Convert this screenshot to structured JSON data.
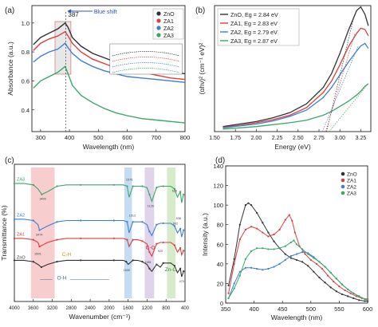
{
  "figure": {
    "colors": {
      "ZnO": "#333333",
      "ZA1": "#d94040",
      "ZA2": "#3f7fd0",
      "ZA3": "#3aa86a"
    }
  },
  "chart_data": [
    {
      "id": "a",
      "type": "line",
      "panel_label": "(a)",
      "xlabel": "Wavelength (nm)",
      "ylabel": "Absorbance (a.u.)",
      "xlim": [
        270,
        800
      ],
      "ylim": [
        0.25,
        1.12
      ],
      "xticks": [
        "300",
        "400",
        "500",
        "600",
        "700",
        "800"
      ],
      "yticks": [
        "0.4",
        "0.6",
        "0.8",
        "1.0"
      ],
      "legend": "top-right",
      "annotations": {
        "peak": "387",
        "shift": "Blue shift"
      },
      "series": [
        {
          "name": "ZnO",
          "x": [
            275,
            300,
            330,
            360,
            385,
            395,
            410,
            440,
            480,
            520,
            560,
            600,
            650,
            700,
            750,
            800
          ],
          "y": [
            0.85,
            0.9,
            0.93,
            0.96,
            1.0,
            0.97,
            0.9,
            0.84,
            0.79,
            0.76,
            0.73,
            0.71,
            0.7,
            0.68,
            0.66,
            0.65
          ]
        },
        {
          "name": "ZA1",
          "x": [
            275,
            300,
            330,
            360,
            385,
            395,
            410,
            440,
            480,
            520,
            560,
            600,
            650,
            700,
            750,
            800
          ],
          "y": [
            0.81,
            0.86,
            0.89,
            0.91,
            0.94,
            0.91,
            0.86,
            0.8,
            0.75,
            0.72,
            0.69,
            0.67,
            0.66,
            0.64,
            0.62,
            0.61
          ]
        },
        {
          "name": "ZA2",
          "x": [
            275,
            300,
            330,
            360,
            385,
            395,
            410,
            440,
            480,
            520,
            560,
            600,
            650,
            700,
            750,
            800
          ],
          "y": [
            0.73,
            0.77,
            0.8,
            0.82,
            0.86,
            0.83,
            0.79,
            0.74,
            0.7,
            0.67,
            0.65,
            0.63,
            0.62,
            0.61,
            0.6,
            0.59
          ]
        },
        {
          "name": "ZA3",
          "x": [
            275,
            300,
            330,
            360,
            385,
            395,
            410,
            440,
            480,
            520,
            560,
            600,
            650,
            700,
            750,
            800
          ],
          "y": [
            0.55,
            0.6,
            0.63,
            0.66,
            0.7,
            0.65,
            0.57,
            0.5,
            0.45,
            0.41,
            0.38,
            0.36,
            0.34,
            0.33,
            0.32,
            0.31
          ]
        }
      ]
    },
    {
      "id": "b",
      "type": "line",
      "panel_label": "(b)",
      "xlabel": "Energy (eV)",
      "ylabel": "(αhν)² (cm⁻¹ eV)²",
      "xlim": [
        1.5,
        3.37
      ],
      "ylim": [
        0,
        100
      ],
      "xticks": [
        "1.50",
        "1.75",
        "2.00",
        "2.25",
        "2.50",
        "2.75",
        "3.00",
        "3.25"
      ],
      "legend": "top-left",
      "legend_labels": [
        "ZnO, Eg = 2.84 eV",
        "ZA1, Eg = 2.83 eV",
        "ZA2, Eg = 2.79 eV",
        "ZA3, Eg = 2.87 eV"
      ],
      "series": [
        {
          "name": "ZnO",
          "x": [
            1.6,
            1.8,
            2.0,
            2.2,
            2.4,
            2.6,
            2.8,
            2.9,
            3.0,
            3.1,
            3.2,
            3.25,
            3.3,
            3.34
          ],
          "y": [
            4,
            6,
            8,
            11,
            15,
            22,
            35,
            46,
            62,
            80,
            96,
            99,
            93,
            84
          ]
        },
        {
          "name": "ZA1",
          "x": [
            1.6,
            1.8,
            2.0,
            2.2,
            2.4,
            2.6,
            2.8,
            2.9,
            3.0,
            3.1,
            3.2,
            3.25,
            3.3,
            3.34
          ],
          "y": [
            3.5,
            5,
            7,
            9.5,
            13,
            19,
            31,
            40,
            53,
            67,
            78,
            82,
            81,
            76
          ]
        },
        {
          "name": "ZA2",
          "x": [
            1.6,
            1.8,
            2.0,
            2.2,
            2.4,
            2.6,
            2.8,
            2.9,
            3.0,
            3.1,
            3.2,
            3.25,
            3.3,
            3.34
          ],
          "y": [
            3,
            4.5,
            6,
            8.5,
            12,
            17,
            27,
            35,
            45,
            55,
            64,
            68,
            70,
            66
          ]
        },
        {
          "name": "ZA3",
          "x": [
            1.6,
            1.8,
            2.0,
            2.2,
            2.4,
            2.6,
            2.8,
            2.9,
            3.0,
            3.1,
            3.2,
            3.25,
            3.3,
            3.34
          ],
          "y": [
            2,
            3,
            4,
            5.5,
            7,
            9,
            13,
            16,
            20,
            24,
            29,
            32,
            36,
            38
          ]
        }
      ]
    },
    {
      "id": "c",
      "type": "line",
      "panel_label": "(c)",
      "xlabel": "Wavenumber (cm⁻¹)",
      "ylabel": "Transmittance (%)",
      "xlim": [
        4000,
        400
      ],
      "ylim": [
        0,
        100
      ],
      "xticks": [
        "4000",
        "3600",
        "3200",
        "2800",
        "2400",
        "2000",
        "1600",
        "1200",
        "800",
        "400"
      ],
      "series_labels": [
        "ZA3",
        "ZA2",
        "ZA1",
        "ZnO"
      ],
      "band_labels": [
        "C-H",
        "O-H",
        "C-O",
        "Zn-O"
      ],
      "peak_labels": [
        "3400",
        "3474",
        "3501",
        "1575",
        "1513",
        "1630",
        "1126",
        "1185",
        "920",
        "620",
        "538",
        "602",
        "470"
      ],
      "series": [
        {
          "name": "ZA3",
          "x": [
            4000,
            3800,
            3600,
            3500,
            3420,
            3300,
            3100,
            2900,
            2600,
            2200,
            1900,
            1700,
            1620,
            1580,
            1500,
            1400,
            1300,
            1200,
            1150,
            1100,
            1000,
            920,
            860,
            700,
            620,
            560,
            500,
            470,
            430
          ],
          "y": [
            86,
            86,
            85,
            82,
            78,
            80,
            84,
            85,
            85,
            85,
            85,
            85,
            84,
            76,
            84,
            84,
            84,
            83,
            78,
            73,
            83,
            84,
            84,
            84,
            82,
            76,
            80,
            72,
            78
          ]
        },
        {
          "name": "ZA2",
          "x": [
            4000,
            3800,
            3600,
            3500,
            3470,
            3300,
            3100,
            2900,
            2600,
            2200,
            1900,
            1700,
            1620,
            1580,
            1500,
            1400,
            1300,
            1200,
            1150,
            1100,
            1000,
            920,
            860,
            700,
            620,
            560,
            500,
            470,
            430
          ],
          "y": [
            60,
            60,
            59,
            56,
            52,
            55,
            58,
            59,
            59,
            59,
            59,
            59,
            58,
            50,
            58,
            58,
            58,
            56,
            51,
            48,
            56,
            57,
            57,
            57,
            55,
            50,
            53,
            47,
            52
          ]
        },
        {
          "name": "ZA1",
          "x": [
            4000,
            3800,
            3600,
            3500,
            3470,
            3300,
            3100,
            2900,
            2600,
            2200,
            1900,
            1700,
            1620,
            1580,
            1500,
            1400,
            1300,
            1200,
            1150,
            1100,
            1000,
            920,
            860,
            700,
            620,
            560,
            500,
            470,
            430
          ],
          "y": [
            46,
            46,
            45,
            43,
            40,
            43,
            45,
            46,
            46,
            46,
            46,
            46,
            45,
            40,
            45,
            45,
            44,
            42,
            36,
            33,
            42,
            43,
            43,
            43,
            41,
            36,
            39,
            34,
            37
          ]
        },
        {
          "name": "ZnO",
          "x": [
            4000,
            3800,
            3600,
            3500,
            3430,
            3300,
            3100,
            2900,
            2600,
            2200,
            1900,
            1700,
            1640,
            1600,
            1500,
            1400,
            1300,
            1200,
            1150,
            1100,
            1000,
            920,
            860,
            700,
            620,
            560,
            500,
            470,
            430
          ],
          "y": [
            30,
            30,
            29,
            27,
            25,
            27,
            29,
            30,
            30,
            30,
            30,
            30,
            29,
            27,
            30,
            30,
            29,
            27,
            24,
            22,
            27,
            25,
            28,
            28,
            26,
            21,
            24,
            18,
            22
          ]
        }
      ]
    },
    {
      "id": "d",
      "type": "line",
      "panel_label": "(d)",
      "xlabel": "Wavelength (nm)",
      "ylabel": "Intensity (a.u.)",
      "xlim": [
        350,
        600
      ],
      "ylim": [
        0,
        140
      ],
      "xticks": [
        "350",
        "400",
        "450",
        "500",
        "550",
        "600"
      ],
      "yticks": [
        "0",
        "20",
        "40",
        "60",
        "80",
        "100",
        "120",
        "140"
      ],
      "legend": "top-right",
      "series": [
        {
          "name": "ZnO",
          "x": [
            355,
            365,
            375,
            385,
            390,
            395,
            405,
            415,
            425,
            435,
            445,
            455,
            465,
            475,
            485,
            495,
            505,
            515,
            525,
            535,
            545,
            555,
            565,
            575,
            585,
            595,
            600
          ],
          "y": [
            18,
            45,
            80,
            100,
            102,
            100,
            92,
            82,
            72,
            63,
            56,
            50,
            46,
            44,
            42,
            38,
            32,
            26,
            21,
            16,
            12,
            9,
            7,
            5,
            3,
            2,
            2
          ]
        },
        {
          "name": "ZA1",
          "x": [
            355,
            365,
            375,
            385,
            395,
            405,
            415,
            425,
            435,
            445,
            455,
            462,
            467,
            472,
            480,
            490,
            500,
            510,
            520,
            530,
            540,
            550,
            560,
            570,
            580,
            590,
            600
          ],
          "y": [
            10,
            40,
            65,
            75,
            78,
            76,
            72,
            68,
            70,
            75,
            85,
            90,
            84,
            72,
            58,
            50,
            44,
            40,
            35,
            28,
            22,
            17,
            13,
            10,
            7,
            5,
            4
          ]
        },
        {
          "name": "ZA2",
          "x": [
            355,
            365,
            375,
            385,
            395,
            405,
            415,
            425,
            435,
            445,
            455,
            465,
            475,
            485,
            490,
            495,
            505,
            515,
            525,
            535,
            545,
            555,
            565,
            575,
            585,
            595,
            600
          ],
          "y": [
            5,
            20,
            32,
            36,
            36,
            35,
            34,
            35,
            37,
            40,
            44,
            48,
            50,
            52,
            52,
            51,
            47,
            42,
            37,
            31,
            25,
            19,
            14,
            10,
            7,
            4,
            3
          ]
        },
        {
          "name": "ZA3",
          "x": [
            355,
            365,
            375,
            385,
            395,
            405,
            415,
            425,
            435,
            445,
            455,
            465,
            470,
            475,
            485,
            495,
            505,
            515,
            525,
            535,
            545,
            555,
            565,
            575,
            585,
            595,
            600
          ],
          "y": [
            5,
            15,
            28,
            45,
            53,
            56,
            56,
            55,
            55,
            56,
            58,
            62,
            64,
            60,
            55,
            50,
            46,
            42,
            37,
            31,
            25,
            19,
            14,
            10,
            7,
            4,
            3
          ]
        }
      ]
    }
  ]
}
